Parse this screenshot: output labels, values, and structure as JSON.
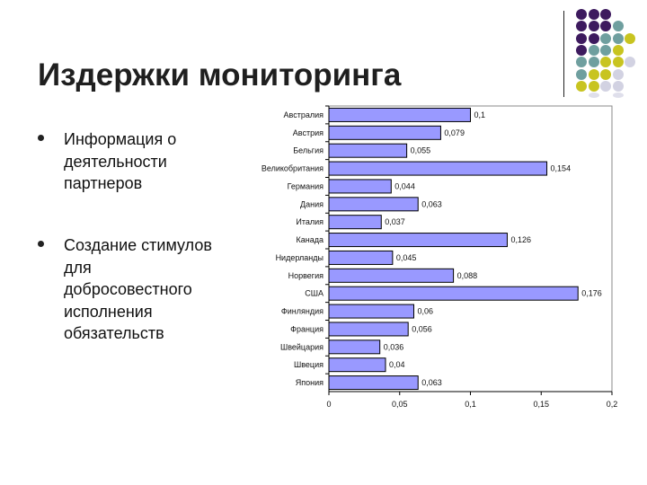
{
  "slide": {
    "title": "Издержки мониторинга",
    "bullets": [
      [
        "Информация о",
        "деятельности",
        "партнеров"
      ],
      [
        "Создание стимулов",
        "для",
        "добросовестного",
        "исполнения",
        "обязательств"
      ]
    ]
  },
  "colors": {
    "bar": "#9999ff",
    "dot_purple": "#3d1a5e",
    "dot_teal": "#6f9f9f",
    "dot_yellow": "#c8c420",
    "dot_light": "#d2d2e2"
  },
  "chart_data": {
    "type": "bar",
    "orientation": "horizontal",
    "categories": [
      "Австралия",
      "Австрия",
      "Бельгия",
      "Великобритания",
      "Германия",
      "Дания",
      "Италия",
      "Канада",
      "Нидерланды",
      "Норвегия",
      "США",
      "Финляндия",
      "Франция",
      "Швейцария",
      "Швеция",
      "Япония"
    ],
    "values": [
      0.1,
      0.079,
      0.055,
      0.154,
      0.044,
      0.063,
      0.037,
      0.126,
      0.045,
      0.088,
      0.176,
      0.06,
      0.056,
      0.036,
      0.04,
      0.063
    ],
    "value_labels": [
      "0,1",
      "0,079",
      "0,055",
      "0,154",
      "0,044",
      "0,063",
      "0,037",
      "0,126",
      "0,045",
      "0,088",
      "0,176",
      "0,06",
      "0,056",
      "0,036",
      "0,04",
      "0,063"
    ],
    "xlim": [
      0,
      0.2
    ],
    "xticks": [
      "0",
      "0,05",
      "0,1",
      "0,15",
      "0,2"
    ],
    "grid": false,
    "legend": "none"
  }
}
